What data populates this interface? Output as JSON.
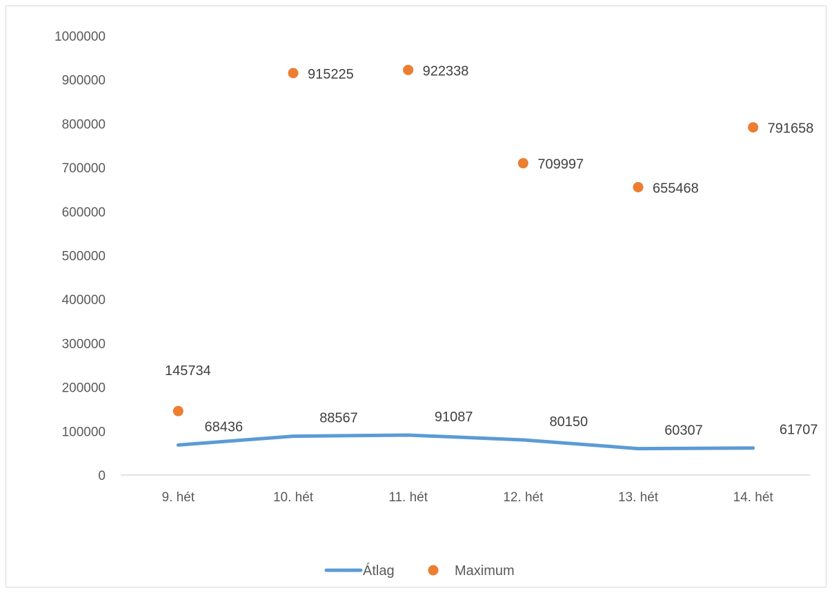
{
  "chart_data": {
    "type": "line",
    "categories": [
      "9. hét",
      "10. hét",
      "11. hét",
      "12. hét",
      "13. hét",
      "14. hét"
    ],
    "series": [
      {
        "name": "Átlag",
        "type": "line",
        "color": "#5b9bd5",
        "values": [
          68436,
          88567,
          91087,
          80150,
          60307,
          61707
        ]
      },
      {
        "name": "Maximum",
        "type": "scatter",
        "color": "#ed7d31",
        "values": [
          145734,
          915225,
          922338,
          709997,
          655468,
          791658
        ]
      }
    ],
    "y_ticks": [
      "0",
      "100000",
      "200000",
      "300000",
      "400000",
      "500000",
      "600000",
      "700000",
      "800000",
      "900000",
      "1000000"
    ],
    "ylim": [
      0,
      1000000
    ],
    "grid": false,
    "legend": "bottom"
  }
}
